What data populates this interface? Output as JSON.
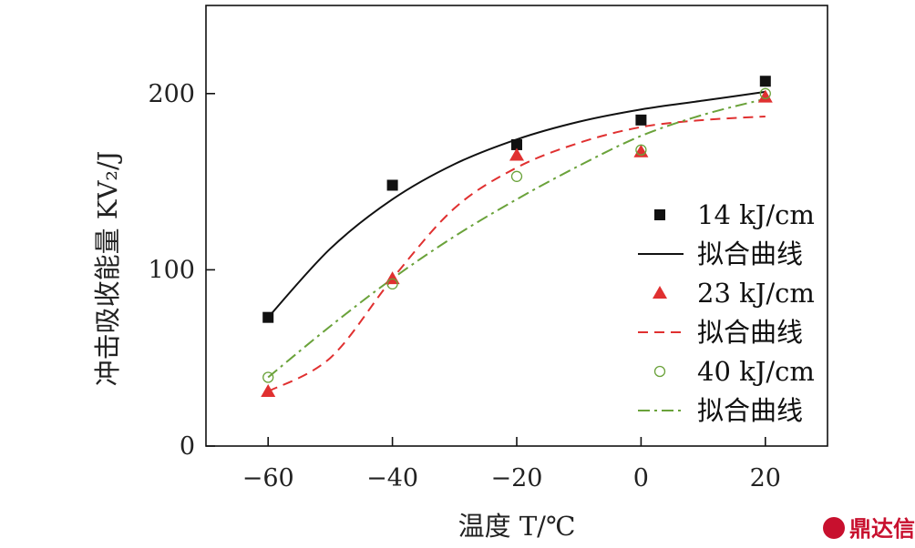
{
  "chart_data": {
    "type": "scatter",
    "xlabel": "温度 T/℃",
    "ylabel": "冲击吸收能量 KV₂/J",
    "xlim": [
      -70,
      30
    ],
    "ylim": [
      0,
      250
    ],
    "xticks": [
      "-60",
      "-40",
      "-20",
      "0",
      "20"
    ],
    "yticks": [
      "0",
      "100",
      "200"
    ],
    "legend_position": "right",
    "series": [
      {
        "name": "14 kJ/cm",
        "marker": "square",
        "color": "#111111",
        "x": [
          -60,
          -40,
          -20,
          0,
          20
        ],
        "y": [
          73,
          148,
          171,
          185,
          207
        ]
      },
      {
        "name": "拟合曲线",
        "kind": "fit",
        "line": "solid",
        "color": "#111111",
        "x": [
          -60,
          -50,
          -40,
          -30,
          -20,
          -10,
          0,
          10,
          20
        ],
        "y": [
          73,
          112,
          140,
          160,
          174,
          184,
          191,
          196,
          201
        ]
      },
      {
        "name": "23 kJ/cm",
        "marker": "triangle",
        "color": "#e03030",
        "x": [
          -60,
          -40,
          -20,
          0,
          20
        ],
        "y": [
          31,
          95,
          165,
          167,
          198
        ]
      },
      {
        "name": "拟合曲线",
        "kind": "fit",
        "line": "dashed",
        "color": "#e03030",
        "x": [
          -60,
          -50,
          -40,
          -30,
          -20,
          -10,
          0,
          10,
          20
        ],
        "y": [
          31,
          50,
          95,
          135,
          158,
          172,
          181,
          185,
          187
        ]
      },
      {
        "name": "40 kJ/cm",
        "marker": "circle",
        "color": "#6aa23a",
        "x": [
          -60,
          -40,
          -20,
          0,
          20
        ],
        "y": [
          39,
          92,
          153,
          168,
          200
        ]
      },
      {
        "name": "拟合曲线",
        "kind": "fit",
        "line": "dashdot",
        "color": "#6aa23a",
        "x": [
          -60,
          -50,
          -40,
          -30,
          -20,
          -10,
          0,
          10,
          20
        ],
        "y": [
          39,
          68,
          95,
          119,
          140,
          159,
          176,
          188,
          197
        ]
      }
    ]
  },
  "watermark": "鼎达信"
}
